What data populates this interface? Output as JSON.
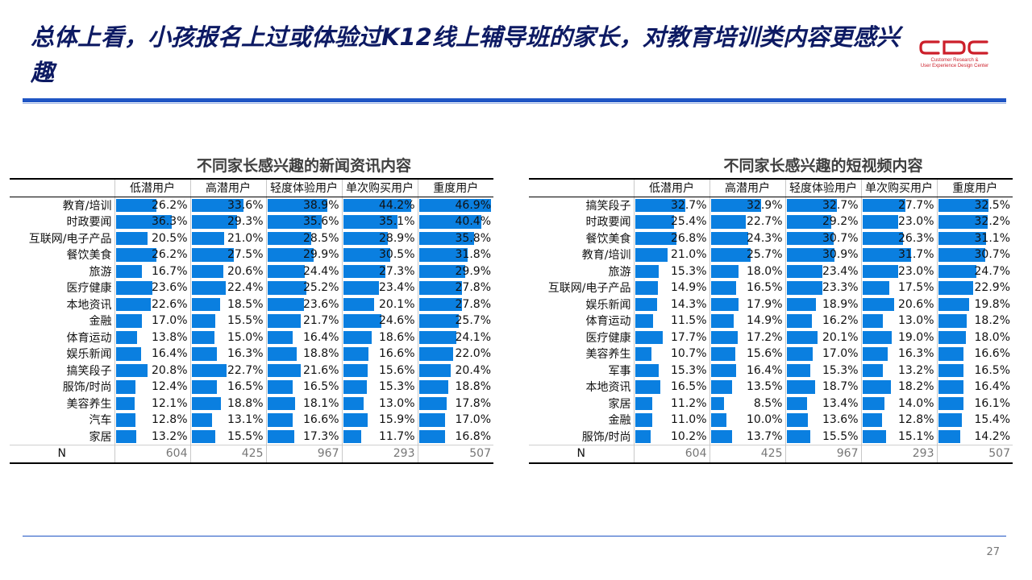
{
  "title": "总体上看，小孩报名上过或体验过K12线上辅导班的家长，对教育培训类内容更感兴趣",
  "logo": {
    "mark": "CDC",
    "line1": "Customer Research &",
    "line2": "User Experience Design Center",
    "color": "#cc1f2a"
  },
  "page_number": "27",
  "accent_color": "#1f55c4",
  "bar_color": "#0a7fe0",
  "tables": [
    {
      "title": "不同家长感兴趣的新闻资讯内容",
      "columns": [
        "低潜用户",
        "高潜用户",
        "轻度体验用户",
        "单次购买用户",
        "重度用户"
      ],
      "rows": [
        {
          "label": "教育/培训",
          "values": [
            26.2,
            33.6,
            38.9,
            44.2,
            46.9
          ]
        },
        {
          "label": "时政要闻",
          "values": [
            36.3,
            29.3,
            35.6,
            35.1,
            40.4
          ]
        },
        {
          "label": "互联网/电子产品",
          "values": [
            20.5,
            21.0,
            28.5,
            28.9,
            35.8
          ]
        },
        {
          "label": "餐饮美食",
          "values": [
            26.2,
            27.5,
            29.9,
            30.5,
            31.8
          ]
        },
        {
          "label": "旅游",
          "values": [
            16.7,
            20.6,
            24.4,
            27.3,
            29.9
          ]
        },
        {
          "label": "医疗健康",
          "values": [
            23.6,
            22.4,
            25.2,
            23.4,
            27.8
          ]
        },
        {
          "label": "本地资讯",
          "values": [
            22.6,
            18.5,
            23.6,
            20.1,
            27.8
          ]
        },
        {
          "label": "金融",
          "values": [
            17.0,
            15.5,
            21.7,
            24.6,
            25.7
          ]
        },
        {
          "label": "体育运动",
          "values": [
            13.8,
            15.0,
            16.4,
            18.6,
            24.1
          ]
        },
        {
          "label": "娱乐新闻",
          "values": [
            16.4,
            16.3,
            18.8,
            16.6,
            22.0
          ]
        },
        {
          "label": "搞笑段子",
          "values": [
            20.8,
            22.7,
            21.6,
            15.6,
            20.4
          ]
        },
        {
          "label": "服饰/时尚",
          "values": [
            12.4,
            16.5,
            16.5,
            15.3,
            18.8
          ]
        },
        {
          "label": "美容养生",
          "values": [
            12.1,
            18.8,
            18.1,
            13.0,
            17.8
          ]
        },
        {
          "label": "汽车",
          "values": [
            12.8,
            13.1,
            16.6,
            15.9,
            17.0
          ]
        },
        {
          "label": "家居",
          "values": [
            13.2,
            15.5,
            17.3,
            11.7,
            16.8
          ]
        }
      ],
      "n_label": "N",
      "n_values": [
        "604",
        "425",
        "967",
        "293",
        "507"
      ]
    },
    {
      "title": "不同家长感兴趣的短视频内容",
      "columns": [
        "低潜用户",
        "高潜用户",
        "轻度体验用户",
        "单次购买用户",
        "重度用户"
      ],
      "rows": [
        {
          "label": "搞笑段子",
          "values": [
            32.7,
            32.9,
            32.7,
            27.7,
            32.5
          ]
        },
        {
          "label": "时政要闻",
          "values": [
            25.4,
            22.7,
            29.2,
            23.0,
            32.2
          ]
        },
        {
          "label": "餐饮美食",
          "values": [
            26.8,
            24.3,
            30.7,
            26.3,
            31.1
          ]
        },
        {
          "label": "教育/培训",
          "values": [
            21.0,
            25.7,
            30.9,
            31.7,
            30.7
          ]
        },
        {
          "label": "旅游",
          "values": [
            15.3,
            18.0,
            23.4,
            23.0,
            24.7
          ]
        },
        {
          "label": "互联网/电子产品",
          "values": [
            14.9,
            16.5,
            23.3,
            17.5,
            22.9
          ]
        },
        {
          "label": "娱乐新闻",
          "values": [
            14.3,
            17.9,
            18.9,
            20.6,
            19.8
          ]
        },
        {
          "label": "体育运动",
          "values": [
            11.5,
            14.9,
            16.2,
            13.0,
            18.2
          ]
        },
        {
          "label": "医疗健康",
          "values": [
            17.7,
            17.2,
            20.1,
            19.0,
            18.0
          ]
        },
        {
          "label": "美容养生",
          "values": [
            10.7,
            15.6,
            17.0,
            16.3,
            16.6
          ]
        },
        {
          "label": "军事",
          "values": [
            15.3,
            16.4,
            15.3,
            13.2,
            16.5
          ]
        },
        {
          "label": "本地资讯",
          "values": [
            16.5,
            13.5,
            18.7,
            18.2,
            16.4
          ]
        },
        {
          "label": "家居",
          "values": [
            11.2,
            8.5,
            13.4,
            14.0,
            16.1
          ]
        },
        {
          "label": "金融",
          "values": [
            11.0,
            10.0,
            13.6,
            12.8,
            15.4
          ]
        },
        {
          "label": "服饰/时尚",
          "values": [
            10.2,
            13.7,
            15.5,
            15.1,
            14.2
          ]
        }
      ],
      "n_label": "N",
      "n_values": [
        "604",
        "425",
        "967",
        "293",
        "507"
      ]
    }
  ]
}
